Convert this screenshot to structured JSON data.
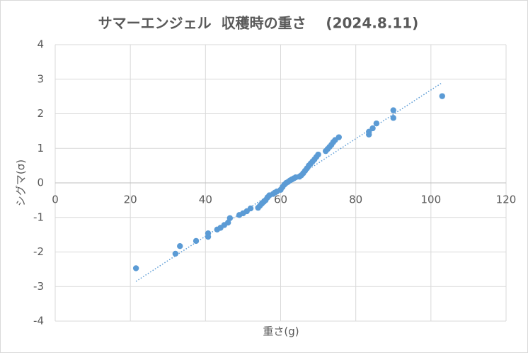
{
  "chart_data": {
    "type": "scatter",
    "title": "サマーエンジェル  収穫時の重さ    (2024.8.11)",
    "x_label": "重さ(g)",
    "y_label": "シグマ(σ)",
    "xlim": [
      0,
      120
    ],
    "xticks": [
      0,
      20,
      40,
      60,
      80,
      100,
      120
    ],
    "ylim": [
      -4,
      4
    ],
    "yticks": [
      -4,
      -3,
      -2,
      -1,
      0,
      1,
      2,
      3,
      4
    ],
    "grid": true,
    "series": [
      {
        "color": "#5b9bd5",
        "x": [
          21.5,
          32,
          33.2,
          37.5,
          40.7,
          40.7,
          43.1,
          44,
          45,
          46,
          46.5,
          49,
          50,
          51,
          52,
          54,
          54.5,
          55,
          55.5,
          56,
          56.5,
          57,
          58,
          58.5,
          59,
          60,
          60.5,
          61,
          61.5,
          62,
          62.5,
          63,
          63.5,
          64,
          65,
          65.5,
          66,
          66.5,
          67,
          67.5,
          68,
          68.5,
          69,
          69.5,
          70,
          72,
          72.5,
          73,
          73.5,
          74,
          74.5,
          75.5,
          83.5,
          83.5,
          84.5,
          85.5,
          90,
          90,
          103
        ],
        "values": [
          -2.47,
          -2.05,
          -1.83,
          -1.68,
          -1.46,
          -1.56,
          -1.35,
          -1.3,
          -1.22,
          -1.15,
          -1.02,
          -0.93,
          -0.88,
          -0.82,
          -0.74,
          -0.72,
          -0.66,
          -0.6,
          -0.55,
          -0.5,
          -0.42,
          -0.36,
          -0.32,
          -0.28,
          -0.25,
          -0.2,
          -0.12,
          -0.05,
          0,
          0.03,
          0.07,
          0.1,
          0.13,
          0.16,
          0.18,
          0.22,
          0.28,
          0.35,
          0.42,
          0.5,
          0.56,
          0.62,
          0.68,
          0.75,
          0.82,
          0.92,
          0.98,
          1.04,
          1.1,
          1.18,
          1.24,
          1.32,
          1.4,
          1.48,
          1.58,
          1.72,
          1.88,
          2.1,
          2.51
        ]
      }
    ],
    "trendline": {
      "color": "#5b9bd5",
      "x": [
        21.5,
        103
      ],
      "values": [
        -2.85,
        2.9
      ]
    }
  }
}
